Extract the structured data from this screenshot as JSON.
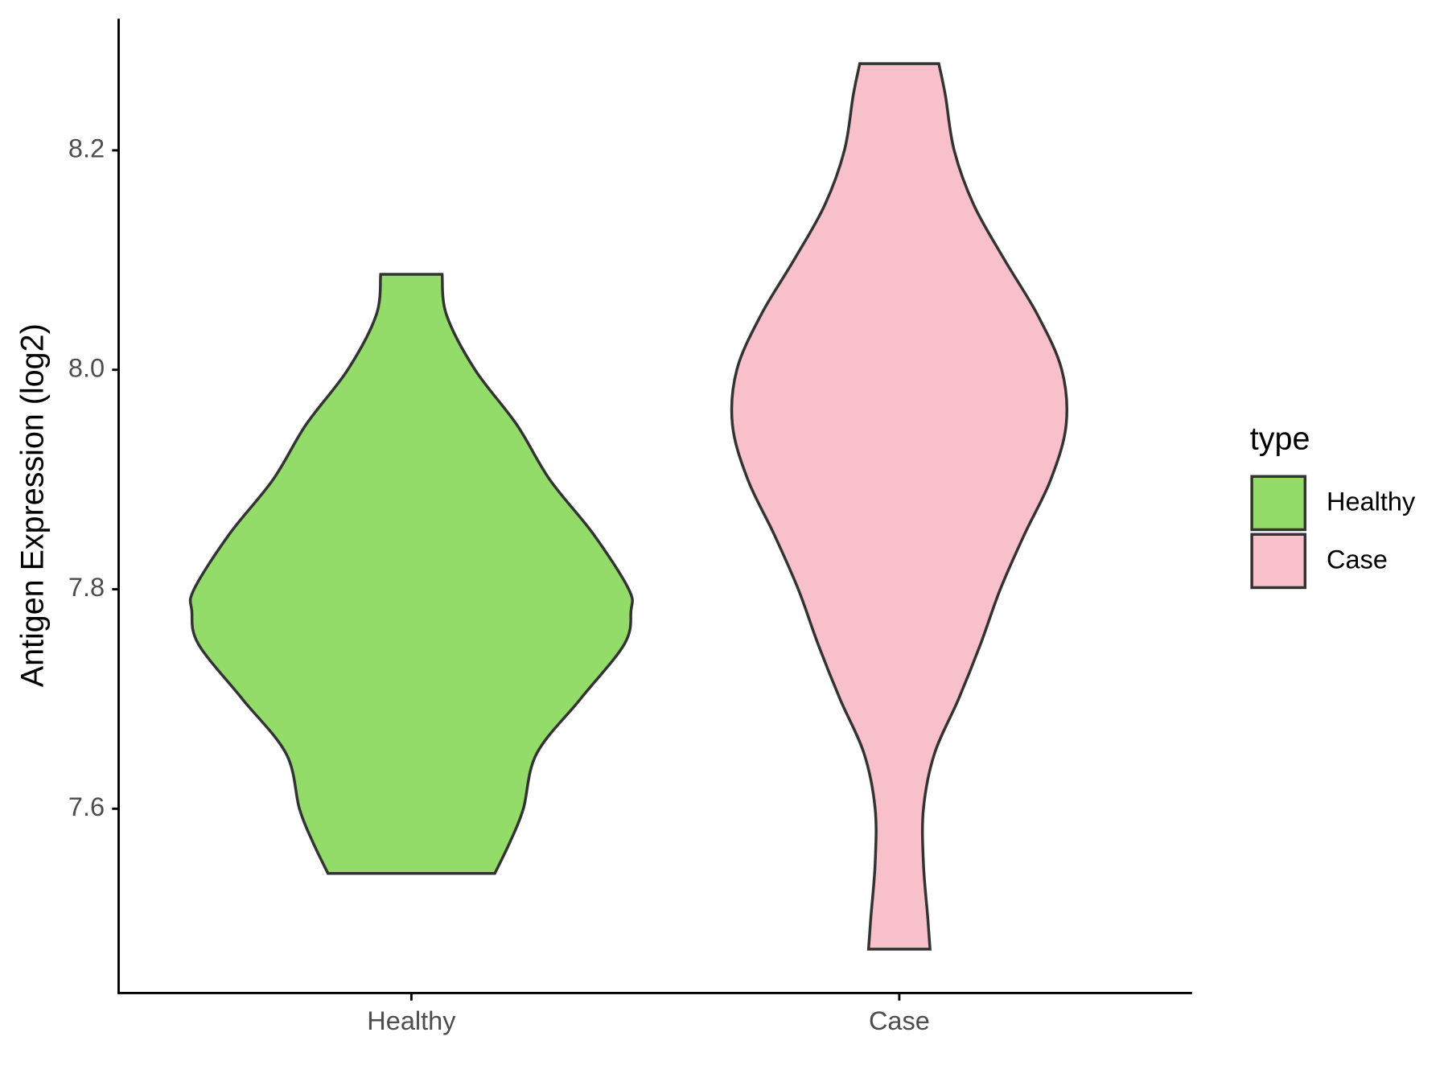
{
  "chart_data": {
    "type": "violin",
    "y_label": "Antigen Expression (log2)",
    "categories": [
      "Healthy",
      "Case"
    ],
    "legend_title": "type",
    "legend": "right",
    "ylim": [
      7.432,
      8.32
    ],
    "yticks": [
      {
        "value": 7.6,
        "label": "7.6"
      },
      {
        "value": 7.8,
        "label": "7.8"
      },
      {
        "value": 8.0,
        "label": "8.0"
      },
      {
        "value": 8.2,
        "label": "8.2"
      }
    ],
    "series": [
      {
        "name": "Healthy",
        "color": "#93dc6a",
        "y": [
          8.087,
          8.05,
          8.0,
          7.95,
          7.9,
          7.85,
          7.8,
          7.78,
          7.75,
          7.7,
          7.65,
          7.6,
          7.57,
          7.541
        ],
        "density": [
          0.14,
          0.16,
          0.29,
          0.48,
          0.63,
          0.83,
          0.99,
          1.0,
          0.97,
          0.77,
          0.57,
          0.51,
          0.45,
          0.38
        ]
      },
      {
        "name": "Case",
        "color": "#f7c0cb",
        "y": [
          8.279,
          8.25,
          8.2,
          8.15,
          8.1,
          8.05,
          8.0,
          7.95,
          7.9,
          7.85,
          7.8,
          7.75,
          7.7,
          7.65,
          7.6,
          7.55,
          7.5,
          7.472
        ],
        "density": [
          0.18,
          0.21,
          0.25,
          0.34,
          0.48,
          0.63,
          0.74,
          0.76,
          0.69,
          0.57,
          0.46,
          0.37,
          0.27,
          0.16,
          0.11,
          0.11,
          0.13,
          0.14
        ]
      }
    ]
  }
}
